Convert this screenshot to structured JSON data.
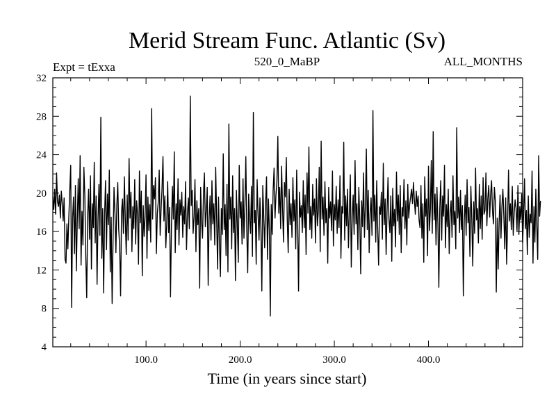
{
  "chart_data": {
    "type": "line",
    "title": "Merid Stream Func. Atlantic (Sv)",
    "subtitle_left": "Expt = tExxa",
    "subtitle_center": "520_0_MaBP",
    "subtitle_right": "ALL_MONTHS",
    "xlabel": "Time (in years since start)",
    "ylabel": "",
    "xlim": [
      1,
      500
    ],
    "ylim": [
      4,
      32
    ],
    "x_ticks": [
      100,
      200,
      300,
      400
    ],
    "x_tick_labels": [
      "100.0",
      "200.0",
      "300.0",
      "400.0"
    ],
    "y_ticks": [
      4,
      8,
      12,
      16,
      20,
      24,
      28,
      32
    ],
    "y_tick_labels": [
      "4",
      "8",
      "12",
      "16",
      "20",
      "24",
      "28",
      "32"
    ],
    "grid": false,
    "series": [
      {
        "name": "Merid Stream Func. Atlantic",
        "x_start": 1,
        "x_step": 1,
        "values": [
          19.6,
          18.3,
          20.4,
          17.8,
          22.1,
          19.1,
          18.6,
          19.8,
          17.4,
          20.2,
          18.9,
          17.1,
          19.5,
          13.1,
          12.7,
          16.8,
          14.2,
          17.5,
          20.3,
          22.9,
          8.1,
          17.4,
          19.6,
          13.7,
          20.8,
          11.9,
          17.2,
          21.5,
          16.3,
          23.9,
          12.5,
          18.1,
          14.6,
          22.7,
          19.8,
          13.4,
          9.1,
          17.6,
          20.4,
          15.2,
          21.8,
          12.1,
          18.9,
          16.4,
          23.2,
          14.8,
          19.7,
          10.5,
          17.3,
          20.9,
          15.6,
          27.9,
          13.2,
          18.4,
          9.6,
          17.8,
          21.3,
          14.1,
          19.9,
          16.7,
          22.4,
          11.8,
          17.5,
          8.5,
          15.3,
          20.6,
          17.9,
          13.8,
          18.7,
          21.1,
          16.2,
          14.5,
          9.3,
          18.1,
          19.4,
          15.8,
          21.7,
          17.2,
          13.6,
          19.8,
          15.1,
          23.6,
          17.4,
          20.1,
          13.9,
          18.6,
          16.3,
          21.4,
          14.7,
          19.2,
          17.8,
          12.6,
          22.3,
          16.9,
          20.2,
          11.4,
          18.7,
          15.5,
          17.6,
          21.9,
          13.2,
          19.6,
          16.1,
          18.8,
          14.9,
          28.8,
          17.3,
          20.8,
          19.4,
          21.6,
          13.7,
          17.9,
          19.1,
          22.4,
          15.6,
          18.3,
          20.5,
          23.8,
          17.1,
          19.7,
          14.3,
          16.8,
          21.2,
          15.9,
          18.5,
          9.2,
          16.6,
          20.7,
          17.3,
          24.3,
          13.8,
          18.9,
          16.2,
          21.5,
          14.6,
          19.3,
          17.7,
          20.1,
          15.4,
          18.6,
          16.8,
          21.2,
          14.1,
          17.9,
          19.5,
          16.3,
          30.1,
          18.7,
          20.3,
          15.8,
          17.6,
          21.4,
          13.9,
          19.2,
          16.7,
          18.4,
          10.1,
          20.6,
          17.1,
          15.3,
          19.8,
          22.1,
          16.5,
          18.2,
          20.6,
          10.4,
          17.3,
          19.7,
          15.1,
          21.3,
          16.8,
          18.9,
          14.6,
          22.7,
          17.5,
          12.1,
          19.6,
          14.8,
          11.3,
          18.4,
          15.7,
          24.1,
          16.2,
          18.8,
          13.5,
          20.9,
          11.8,
          27.2,
          17.3,
          19.6,
          14.2,
          21.8,
          15.9,
          18.4,
          10.9,
          20.3,
          16.7,
          12.8,
          22.9,
          17.4,
          19.1,
          14.7,
          21.5,
          15.3,
          18.6,
          23.8,
          16.2,
          11.7,
          19.9,
          17.3,
          15.8,
          20.7,
          13.4,
          28.4,
          16.9,
          18.2,
          12.6,
          21.4,
          17.8,
          15.1,
          19.5,
          16.4,
          9.8,
          20.8,
          17.6,
          14.3,
          18.9,
          21.7,
          13.1,
          19.4,
          16.2,
          7.2,
          18.8,
          15.7,
          20.3,
          22.6,
          17.4,
          19.8,
          21.2,
          25.9,
          17.9,
          20.6,
          16.3,
          22.8,
          18.5,
          14.9,
          21.1,
          19.6,
          23.7,
          17.2,
          13.8,
          20.4,
          16.7,
          18.9,
          15.4,
          21.6,
          17.1,
          19.3,
          14.2,
          22.4,
          16.8,
          9.8,
          20.1,
          17.5,
          18.7,
          15.9,
          21.3,
          16.4,
          19.8,
          13.6,
          22.1,
          17.9,
          24.8,
          16.2,
          18.6,
          15.3,
          20.9,
          17.7,
          19.4,
          14.8,
          21.5,
          16.6,
          18.1,
          22.7,
          13.9,
          25.4,
          17.3,
          19.6,
          15.6,
          21.2,
          16.9,
          18.4,
          12.7,
          20.6,
          17.4,
          19.1,
          16.1,
          22.3,
          14.5,
          18.8,
          17.2,
          20.7,
          15.8,
          19.3,
          16.4,
          21.8,
          13.2,
          18.6,
          17.9,
          25.3,
          15.1,
          19.7,
          16.6,
          20.4,
          14.3,
          18.2,
          21.9,
          12.3,
          17.5,
          19.8,
          15.7,
          23.4,
          16.8,
          18.9,
          14.1,
          20.6,
          17.3,
          11.6,
          19.2,
          16.5,
          22.1,
          15.4,
          18.7,
          24.6,
          16.2,
          20.3,
          13.8,
          17.9,
          19.5,
          15.6,
          28.6,
          17.1,
          19.8,
          14.9,
          21.3,
          16.4,
          12.5,
          18.6,
          17.8,
          20.1,
          15.2,
          23.1,
          16.7,
          19.4,
          13.6,
          18.2,
          21.6,
          17.3,
          15.9,
          19.7,
          12.9,
          20.5,
          16.6,
          18.3,
          14.4,
          22.2,
          17.1,
          19.8,
          15.7,
          20.8,
          13.8,
          18.5,
          17.6,
          21.4,
          16.3,
          19.2,
          14.6,
          20.9,
          17.4,
          18.8,
          19.6,
          20.4,
          18.9,
          21.1,
          19.3,
          17.8,
          20.2,
          18.6,
          19.7,
          17.2,
          16.4,
          20.8,
          15.3,
          18.9,
          12.8,
          21.7,
          17.6,
          19.4,
          13.5,
          22.8,
          16.1,
          18.3,
          23.4,
          15.8,
          26.4,
          17.2,
          19.9,
          14.6,
          20.6,
          16.8,
          10.2,
          18.4,
          21.3,
          15.1,
          19.7,
          17.6,
          22.9,
          14.3,
          18.8,
          16.5,
          20.4,
          13.7,
          17.9,
          19.2,
          15.4,
          21.8,
          16.7,
          18.1,
          14.2,
          26.8,
          17.4,
          19.6,
          15.9,
          20.3,
          16.2,
          18.7,
          9.3,
          17.1,
          19.8,
          15.6,
          21.4,
          16.9,
          18.5,
          13.4,
          20.7,
          17.3,
          12.4,
          19.1,
          15.8,
          22.6,
          17.2,
          18.4,
          14.8,
          20.9,
          16.3,
          19.7,
          15.2,
          21.6,
          17.8,
          18.2,
          22.1,
          16.6,
          19.4,
          20.8,
          17.5,
          19.9,
          21.3,
          18.1,
          16.8,
          20.6,
          19.2,
          9.7,
          17.4,
          12.1,
          16.9,
          19.8,
          15.3,
          18.6,
          20.4,
          17.7,
          14.2,
          19.5,
          12.6,
          16.8,
          22.4,
          17.1,
          18.9,
          16.2,
          20.7,
          15.6,
          17.9,
          19.3,
          18.4,
          16.1,
          20.8,
          15.7,
          18.6,
          17.2,
          19.9,
          14.8,
          17.6,
          21.5,
          16.3,
          18.2,
          13.6,
          19.7,
          15.4,
          17.8,
          16.9,
          22.3,
          12.7,
          18.6,
          14.9,
          20.4,
          16.8,
          13.1,
          23.9,
          17.6,
          19.2
        ]
      }
    ]
  }
}
